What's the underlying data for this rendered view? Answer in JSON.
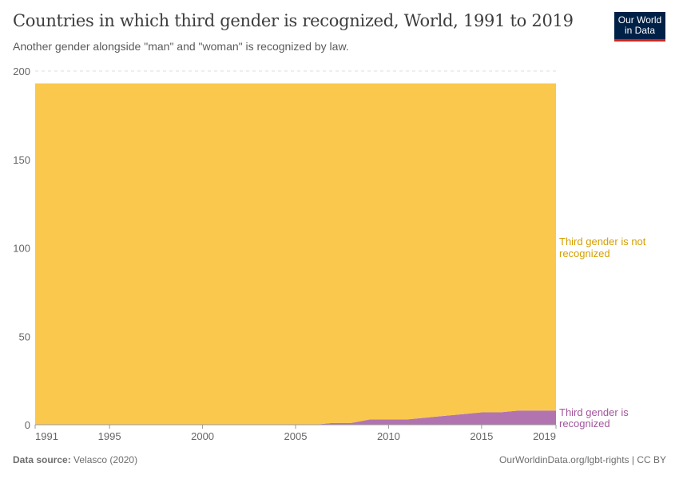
{
  "title": "Countries in which third gender is recognized, World, 1991 to 2019",
  "subtitle": "Another gender alongside \"man\" and \"woman\" is recognized by law.",
  "logo": "Our World in Data",
  "footer": {
    "source_label": "Data source:",
    "source": "Velasco (2020)",
    "right": "OurWorldinData.org/lgbt-rights | CC BY"
  },
  "chart_data": {
    "type": "area",
    "stacked": true,
    "x": [
      1991,
      1992,
      1993,
      1994,
      1995,
      1996,
      1997,
      1998,
      1999,
      2000,
      2001,
      2002,
      2003,
      2004,
      2005,
      2006,
      2007,
      2008,
      2009,
      2010,
      2011,
      2012,
      2013,
      2014,
      2015,
      2016,
      2017,
      2018,
      2019
    ],
    "series": [
      {
        "name": "Third gender is recognized",
        "color": "#b174b0",
        "values": [
          0,
          0,
          0,
          0,
          0,
          0,
          0,
          0,
          0,
          0,
          0,
          0,
          0,
          0,
          0,
          0,
          1,
          1,
          3,
          3,
          3,
          4,
          5,
          6,
          7,
          7,
          8,
          8,
          8
        ]
      },
      {
        "name": "Third gender is not recognized",
        "color": "#fac84c",
        "values": [
          193,
          193,
          193,
          193,
          193,
          193,
          193,
          193,
          193,
          193,
          193,
          193,
          193,
          193,
          193,
          193,
          192,
          192,
          190,
          190,
          190,
          189,
          188,
          187,
          186,
          186,
          185,
          185,
          185
        ]
      }
    ],
    "label_colors": {
      "Third gender is recognized": "#a2559c",
      "Third gender is not recognized": "#d59e00"
    },
    "ylim": [
      0,
      200
    ],
    "yticks": [
      0,
      50,
      100,
      150,
      200
    ],
    "xticks": [
      1991,
      1995,
      2000,
      2005,
      2010,
      2015,
      2019
    ],
    "grid": "horizontal dashed",
    "legend": "right, inline labels"
  }
}
